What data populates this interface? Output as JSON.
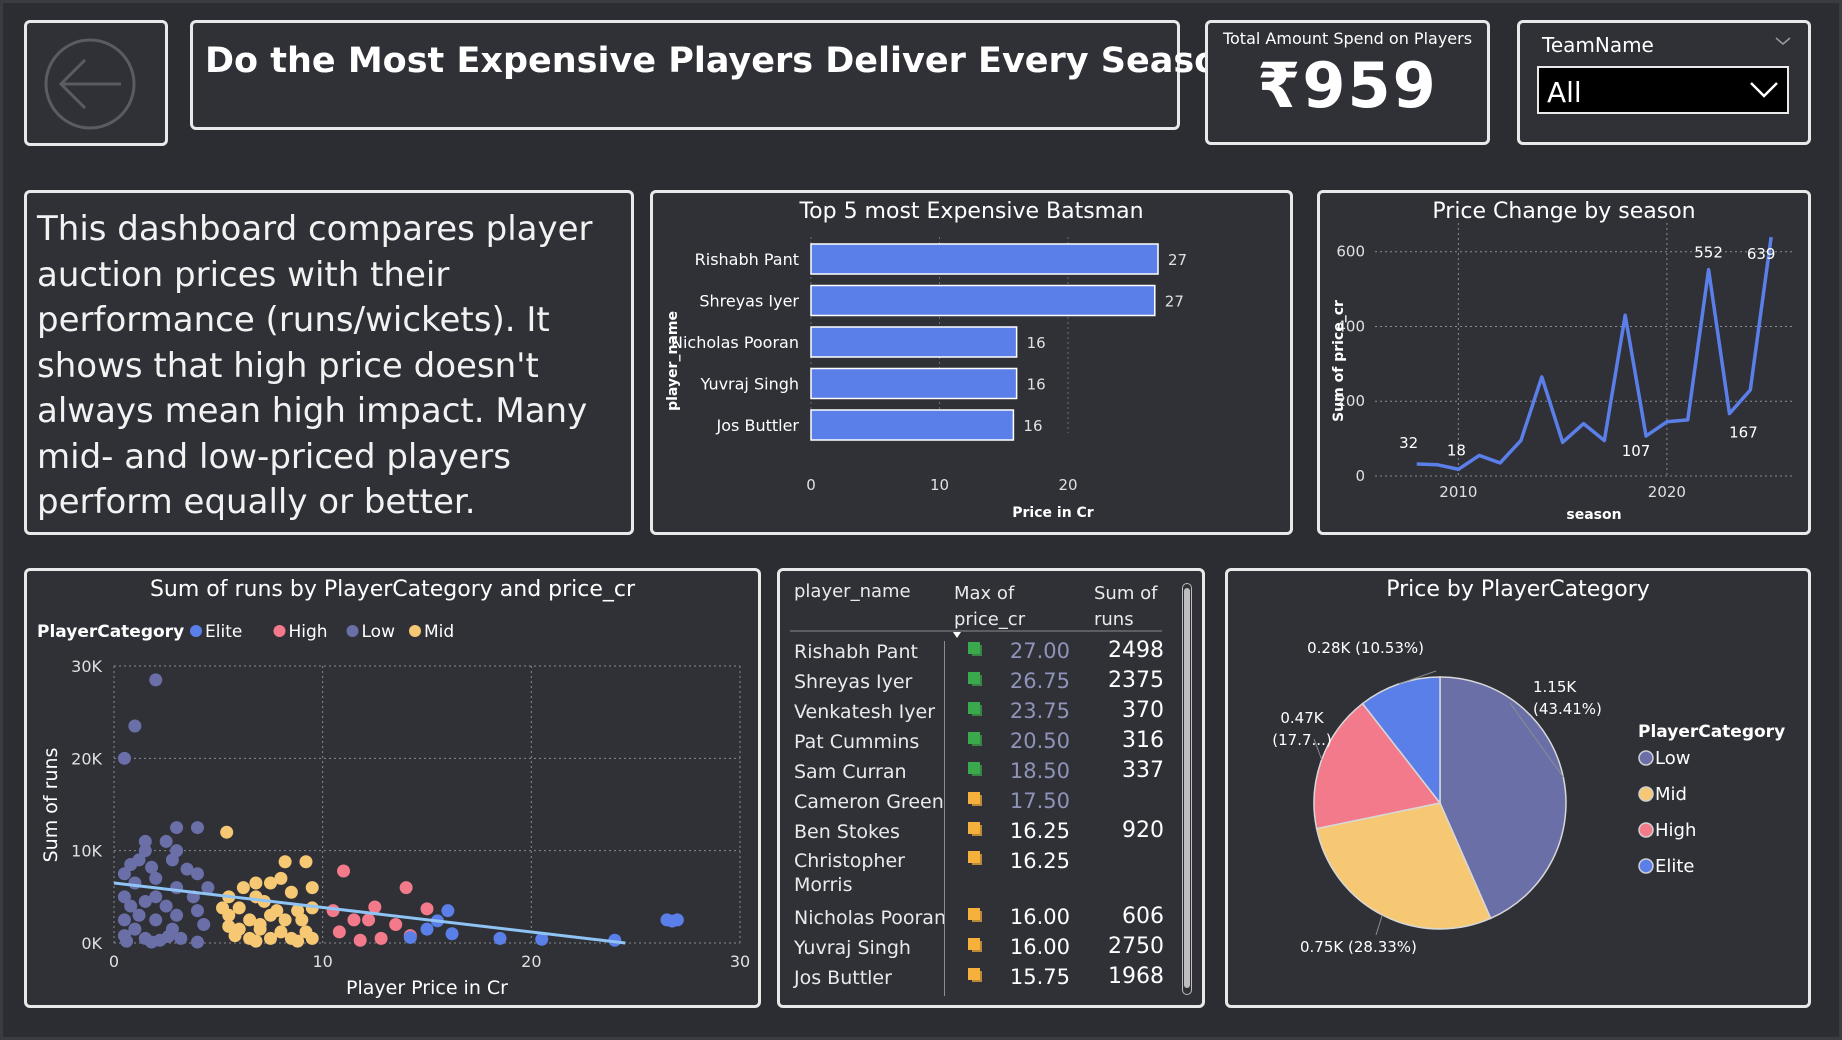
{
  "header": {
    "title": "Do the Most Expensive Players Deliver Every Season?",
    "kpi_label": "Total Amount Spend on Players",
    "kpi_value": "₹959"
  },
  "slicer": {
    "label": "TeamName",
    "value": "All"
  },
  "description": "This dashboard compares player auction prices with their performance (runs/wickets). It shows that high price doesn't always mean high impact. Many mid- and low-priced players perform equally or better.",
  "colors": {
    "accent": "#5b7fe8",
    "elite": "#5b7fe8",
    "high": "#f37a8a",
    "low": "#6b6fa8",
    "mid": "#f7c873",
    "trend": "#8fc4f4",
    "flag_green": "#3aa84c",
    "flag_yellow": "#f5b13c"
  },
  "charts": [
    {
      "id": "top5",
      "type": "bar",
      "orientation": "horizontal",
      "title": "Top 5 most Expensive Batsman",
      "ylabel": "player_name",
      "xlabel": "Price in Cr",
      "categories": [
        "Rishabh Pant",
        "Shreyas Iyer",
        "Nicholas Pooran",
        "Yuvraj Singh",
        "Jos Buttler"
      ],
      "values": [
        27,
        26.75,
        16,
        16,
        15.75
      ],
      "value_labels": [
        "27",
        "27",
        "16",
        "16",
        "16"
      ],
      "xlim": [
        0,
        27
      ],
      "ticks": [
        0,
        10,
        20
      ]
    },
    {
      "id": "season",
      "type": "line",
      "title": "Price Change by season",
      "xlabel": "season",
      "ylabel": "Sum of price_cr",
      "x": [
        2008,
        2009,
        2010,
        2011,
        2012,
        2013,
        2014,
        2015,
        2016,
        2017,
        2018,
        2019,
        2020,
        2021,
        2022,
        2023,
        2024,
        2025
      ],
      "y": [
        32,
        30,
        18,
        55,
        35,
        95,
        265,
        90,
        140,
        95,
        430,
        107,
        145,
        150,
        552,
        167,
        230,
        639
      ],
      "point_labels": [
        {
          "x": 2008,
          "y": 32,
          "text": "32"
        },
        {
          "x": 2010,
          "y": 18,
          "text": "18"
        },
        {
          "x": 2019,
          "y": 107,
          "text": "107"
        },
        {
          "x": 2022,
          "y": 552,
          "text": "552"
        },
        {
          "x": 2023,
          "y": 167,
          "text": "167"
        },
        {
          "x": 2025,
          "y": 639,
          "text": "639"
        }
      ],
      "xlim": [
        2006,
        2026
      ],
      "ylim": [
        0,
        650
      ],
      "yticks": [
        0,
        200,
        400,
        600
      ],
      "xticks": [
        2010,
        2020
      ],
      "grid": true
    },
    {
      "id": "scatter",
      "type": "scatter",
      "title": "Sum of runs by PlayerCategory and price_cr",
      "xlabel": "Player Price in Cr",
      "ylabel": "Sum of runs",
      "legend_title": "PlayerCategory",
      "legend": [
        "Elite",
        "High",
        "Low",
        "Mid"
      ],
      "xlim": [
        0,
        30
      ],
      "ylim": [
        0,
        30000
      ],
      "xticks": [
        0,
        10,
        20,
        30
      ],
      "yticks": [
        0,
        10000,
        20000,
        30000
      ],
      "ytick_labels": [
        "0K",
        "10K",
        "20K",
        "30K"
      ],
      "trend": {
        "x": [
          0,
          24.5
        ],
        "y": [
          6500,
          0
        ]
      },
      "series": [
        {
          "name": "Low",
          "points": [
            [
              2,
              28500
            ],
            [
              1,
              23500
            ],
            [
              0.5,
              20000
            ],
            [
              3,
              12500
            ],
            [
              4,
              12500
            ],
            [
              1.5,
              11000
            ],
            [
              2.5,
              11000
            ],
            [
              1.5,
              10000
            ],
            [
              3,
              10000
            ],
            [
              1.2,
              9000
            ],
            [
              2.8,
              9000
            ],
            [
              0.8,
              8500
            ],
            [
              1.8,
              8200
            ],
            [
              3.5,
              8000
            ],
            [
              0.5,
              7500
            ],
            [
              4,
              7500
            ],
            [
              2,
              7000
            ],
            [
              1,
              6500
            ],
            [
              3,
              6000
            ],
            [
              4.5,
              6000
            ],
            [
              0.5,
              5000
            ],
            [
              2,
              5000
            ],
            [
              3.8,
              5000
            ],
            [
              1.5,
              4500
            ],
            [
              0.8,
              4000
            ],
            [
              2.5,
              4000
            ],
            [
              4,
              3500
            ],
            [
              1.2,
              3000
            ],
            [
              3,
              3000
            ],
            [
              0.5,
              2500
            ],
            [
              2,
              2500
            ],
            [
              4.3,
              2000
            ],
            [
              1,
              1500
            ],
            [
              2.8,
              1500
            ],
            [
              0.5,
              800
            ],
            [
              1.5,
              500
            ],
            [
              3.2,
              500
            ],
            [
              2.2,
              300
            ],
            [
              0.6,
              200
            ],
            [
              1.8,
              100
            ],
            [
              4,
              100
            ],
            [
              2.6,
              700
            ]
          ]
        },
        {
          "name": "Mid",
          "points": [
            [
              5.4,
              12000
            ],
            [
              8.2,
              8800
            ],
            [
              9.2,
              8800
            ],
            [
              8,
              7000
            ],
            [
              9.5,
              6000
            ],
            [
              6.8,
              6500
            ],
            [
              7.5,
              6500
            ],
            [
              6.2,
              6000
            ],
            [
              5.5,
              5000
            ],
            [
              6.8,
              5000
            ],
            [
              8.5,
              5500
            ],
            [
              7.2,
              4500
            ],
            [
              5.2,
              3800
            ],
            [
              6,
              3800
            ],
            [
              7.8,
              3500
            ],
            [
              8.8,
              3500
            ],
            [
              9.5,
              3800
            ],
            [
              5.5,
              3000
            ],
            [
              6.5,
              2500
            ],
            [
              7.5,
              3000
            ],
            [
              8.2,
              2500
            ],
            [
              9,
              2500
            ],
            [
              6,
              1500
            ],
            [
              7,
              1500
            ],
            [
              8,
              1200
            ],
            [
              9.2,
              1200
            ],
            [
              5.8,
              800
            ],
            [
              6.5,
              500
            ],
            [
              7.5,
              500
            ],
            [
              8.5,
              500
            ],
            [
              9.5,
              500
            ],
            [
              6.8,
              200
            ],
            [
              8.8,
              200
            ],
            [
              5.5,
              1800
            ],
            [
              7,
              2000
            ]
          ]
        },
        {
          "name": "High",
          "points": [
            [
              11,
              7800
            ],
            [
              14,
              6000
            ],
            [
              12.5,
              3900
            ],
            [
              10.5,
              3500
            ],
            [
              15,
              3700
            ],
            [
              11.5,
              2500
            ],
            [
              12.2,
              2500
            ],
            [
              13.5,
              2000
            ],
            [
              10.8,
              1200
            ],
            [
              14.2,
              800
            ],
            [
              12.8,
              500
            ],
            [
              11.8,
              300
            ]
          ]
        },
        {
          "name": "Elite",
          "points": [
            [
              16,
              3500
            ],
            [
              15.5,
              2400
            ],
            [
              15,
              1500
            ],
            [
              16.2,
              1000
            ],
            [
              14.2,
              600
            ],
            [
              18.5,
              500
            ],
            [
              20.5,
              400
            ],
            [
              24,
              300
            ],
            [
              26.5,
              2500
            ],
            [
              26.75,
              2375
            ],
            [
              27,
              2500
            ]
          ]
        }
      ]
    },
    {
      "id": "pie",
      "type": "pie",
      "title": "Price by PlayerCategory",
      "legend_title": "PlayerCategory",
      "slices": [
        {
          "name": "Low",
          "value": 43.41,
          "label": "1.15K (43.41%)"
        },
        {
          "name": "Mid",
          "value": 28.33,
          "label": "0.75K (28.33%)"
        },
        {
          "name": "High",
          "value": 17.73,
          "label": "0.47K (17.7...)"
        },
        {
          "name": "Elite",
          "value": 10.53,
          "label": "0.28K (10.53%)"
        }
      ]
    }
  ],
  "table": {
    "columns": [
      "player_name",
      "Max of price_cr",
      "Sum of runs"
    ],
    "rows": [
      {
        "name": "Rishabh Pant",
        "flag": "green",
        "price": "27.00",
        "runs": "2498"
      },
      {
        "name": "Shreyas Iyer",
        "flag": "green",
        "price": "26.75",
        "runs": "2375"
      },
      {
        "name": "Venkatesh Iyer",
        "flag": "green",
        "price": "23.75",
        "runs": "370"
      },
      {
        "name": "Pat Cummins",
        "flag": "green",
        "price": "20.50",
        "runs": "316"
      },
      {
        "name": "Sam Curran",
        "flag": "green",
        "price": "18.50",
        "runs": "337"
      },
      {
        "name": "Cameron Green",
        "flag": "yellow",
        "price": "17.50",
        "runs": ""
      },
      {
        "name": "Ben Stokes",
        "flag": "yellow",
        "price": "16.25",
        "runs": "920"
      },
      {
        "name": "Christopher Morris",
        "flag": "yellow",
        "price": "16.25",
        "runs": ""
      },
      {
        "name": "Nicholas Pooran",
        "flag": "yellow",
        "price": "16.00",
        "runs": "606"
      },
      {
        "name": "Yuvraj Singh",
        "flag": "yellow",
        "price": "16.00",
        "runs": "2750"
      },
      {
        "name": "Jos Buttler",
        "flag": "yellow",
        "price": "15.75",
        "runs": "1968"
      }
    ]
  }
}
